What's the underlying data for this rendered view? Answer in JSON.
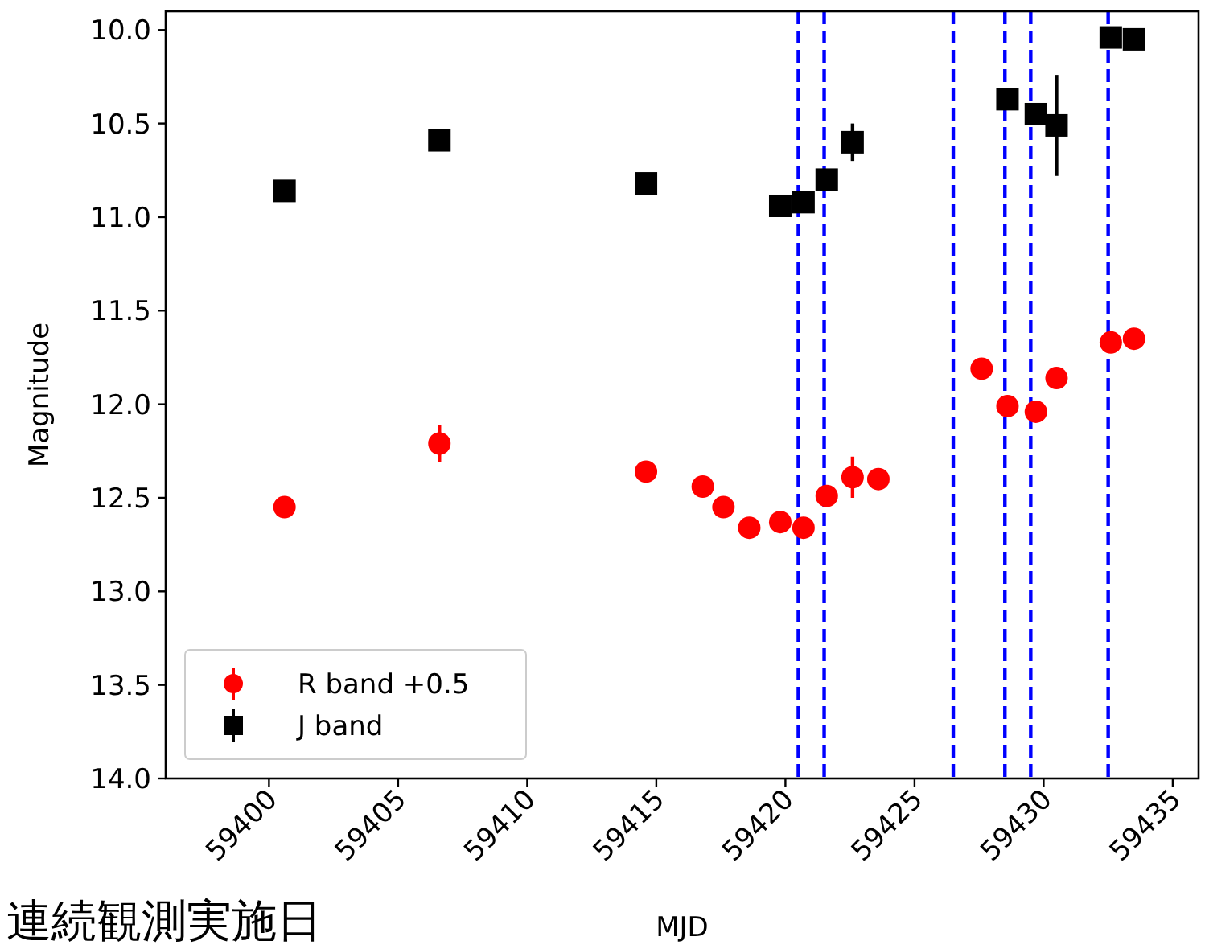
{
  "chart_data": {
    "type": "scatter",
    "xlabel": "MJD",
    "ylabel": "Magnitude",
    "annotations": [
      "連続観測実施日"
    ],
    "xlim": [
      59396,
      59436
    ],
    "xticks": [
      59400,
      59405,
      59410,
      59415,
      59420,
      59425,
      59430,
      59435
    ],
    "ylim": [
      14.0,
      9.9
    ],
    "yticks": [
      {
        "value": 10,
        "label": "10.0"
      },
      {
        "value": 10.5,
        "label": "10.5"
      },
      {
        "value": 11,
        "label": "11.0"
      },
      {
        "value": 11.5,
        "label": "11.5"
      },
      {
        "value": 12,
        "label": "12.0"
      },
      {
        "value": 12.5,
        "label": "12.5"
      },
      {
        "value": 13,
        "label": "13.0"
      },
      {
        "value": 13.5,
        "label": "13.5"
      },
      {
        "value": 14,
        "label": "14.0"
      }
    ],
    "legend": "bottom left",
    "series": [
      {
        "name": "R band +0.5",
        "color": "#ff0000",
        "marker": "circle",
        "x": [
          59400.6,
          59406.6,
          59414.6,
          59416.8,
          59417.6,
          59418.6,
          59419.8,
          59420.7,
          59421.6,
          59422.6,
          59423.6,
          59427.6,
          59428.6,
          59429.7,
          59430.5,
          59432.6,
          59433.5
        ],
        "values": [
          12.55,
          12.21,
          12.36,
          12.44,
          12.55,
          12.66,
          12.63,
          12.66,
          12.49,
          12.39,
          12.4,
          11.81,
          12.01,
          12.04,
          11.86,
          11.67,
          11.65
        ],
        "errors": [
          null,
          0.1,
          null,
          null,
          null,
          null,
          null,
          null,
          null,
          0.11,
          null,
          null,
          null,
          null,
          null,
          null,
          null
        ]
      },
      {
        "name": "J band",
        "color": "#000000",
        "marker": "square",
        "x": [
          59400.6,
          59406.6,
          59414.6,
          59419.8,
          59420.7,
          59421.6,
          59422.6,
          59428.6,
          59429.7,
          59430.5,
          59432.6,
          59433.5
        ],
        "values": [
          10.86,
          10.59,
          10.82,
          10.94,
          10.92,
          10.8,
          10.6,
          10.37,
          10.45,
          10.51,
          10.04,
          10.05
        ],
        "errors": [
          null,
          null,
          null,
          null,
          null,
          null,
          0.1,
          null,
          null,
          0.27,
          null,
          null
        ]
      }
    ],
    "ref_lines": [
      {
        "axis": "x",
        "value": 59420.5,
        "color": "#0000ff",
        "line_style": "dashed"
      },
      {
        "axis": "x",
        "value": 59421.5,
        "color": "#0000ff",
        "line_style": "dashed"
      },
      {
        "axis": "x",
        "value": 59426.5,
        "color": "#0000ff",
        "line_style": "dashed"
      },
      {
        "axis": "x",
        "value": 59428.5,
        "color": "#0000ff",
        "line_style": "dashed"
      },
      {
        "axis": "x",
        "value": 59429.5,
        "color": "#0000ff",
        "line_style": "dashed"
      },
      {
        "axis": "x",
        "value": 59432.5,
        "color": "#0000ff",
        "line_style": "dashed"
      }
    ]
  }
}
